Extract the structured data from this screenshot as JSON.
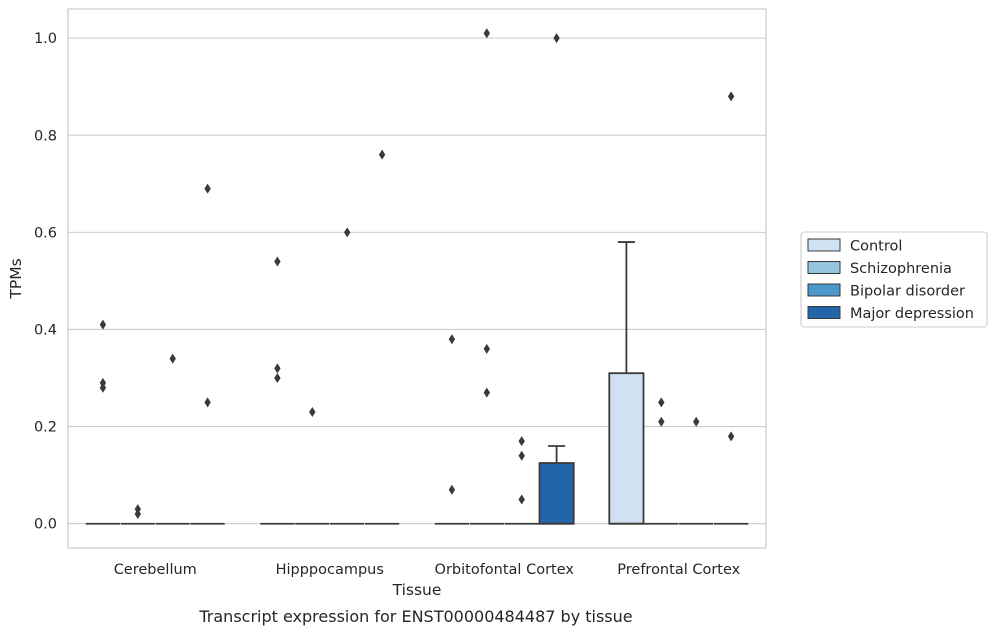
{
  "chart_data": {
    "type": "box",
    "xlabel": "Tissue",
    "ylabel": "TPMs",
    "caption": "Transcript expression for ENST00000484487 by tissue",
    "ylim": [
      -0.05,
      1.06
    ],
    "yticks": [
      0.0,
      0.2,
      0.4,
      0.6,
      0.8,
      1.0
    ],
    "ytick_labels": [
      "0.0",
      "0.2",
      "0.4",
      "0.6",
      "0.8",
      "1.0"
    ],
    "grid": "horizontal",
    "legend_position": "right",
    "categories": [
      "Cerebellum",
      "Hipppocampus",
      "Orbitofontal Cortex",
      "Prefrontal Cortex"
    ],
    "series": [
      {
        "name": "Control",
        "color": "#d0e1f2"
      },
      {
        "name": "Schizophrenia",
        "color": "#94c4df"
      },
      {
        "name": "Bipolar disorder",
        "color": "#4a98c9"
      },
      {
        "name": "Major depression",
        "color": "#2265a8"
      }
    ],
    "boxes": [
      {
        "category": 0,
        "series": 0,
        "q1": 0,
        "median": 0,
        "q3": 0,
        "whisker_low": 0,
        "whisker_high": 0,
        "outliers": [
          0.41,
          0.29,
          0.28
        ]
      },
      {
        "category": 0,
        "series": 1,
        "q1": 0,
        "median": 0,
        "q3": 0,
        "whisker_low": 0,
        "whisker_high": 0,
        "outliers": [
          0.03,
          0.02
        ]
      },
      {
        "category": 0,
        "series": 2,
        "q1": 0,
        "median": 0,
        "q3": 0,
        "whisker_low": 0,
        "whisker_high": 0,
        "outliers": [
          0.34
        ]
      },
      {
        "category": 0,
        "series": 3,
        "q1": 0,
        "median": 0,
        "q3": 0,
        "whisker_low": 0,
        "whisker_high": 0,
        "outliers": [
          0.69,
          0.25
        ]
      },
      {
        "category": 1,
        "series": 0,
        "q1": 0,
        "median": 0,
        "q3": 0,
        "whisker_low": 0,
        "whisker_high": 0,
        "outliers": [
          0.54,
          0.32,
          0.3
        ]
      },
      {
        "category": 1,
        "series": 1,
        "q1": 0,
        "median": 0,
        "q3": 0,
        "whisker_low": 0,
        "whisker_high": 0,
        "outliers": [
          0.23
        ]
      },
      {
        "category": 1,
        "series": 2,
        "q1": 0,
        "median": 0,
        "q3": 0,
        "whisker_low": 0,
        "whisker_high": 0,
        "outliers": [
          0.6
        ]
      },
      {
        "category": 1,
        "series": 3,
        "q1": 0,
        "median": 0,
        "q3": 0,
        "whisker_low": 0,
        "whisker_high": 0,
        "outliers": [
          0.76
        ]
      },
      {
        "category": 2,
        "series": 0,
        "q1": 0,
        "median": 0,
        "q3": 0,
        "whisker_low": 0,
        "whisker_high": 0,
        "outliers": [
          0.38,
          0.07
        ]
      },
      {
        "category": 2,
        "series": 1,
        "q1": 0,
        "median": 0,
        "q3": 0,
        "whisker_low": 0,
        "whisker_high": 0,
        "outliers": [
          1.01,
          0.36,
          0.27
        ]
      },
      {
        "category": 2,
        "series": 2,
        "q1": 0,
        "median": 0,
        "q3": 0,
        "whisker_low": 0,
        "whisker_high": 0,
        "outliers": [
          0.17,
          0.14,
          0.05
        ]
      },
      {
        "category": 2,
        "series": 3,
        "q1": 0,
        "median": 0,
        "q3": 0.125,
        "whisker_low": 0,
        "whisker_high": 0.16,
        "outliers": [
          1.0
        ]
      },
      {
        "category": 3,
        "series": 0,
        "q1": 0,
        "median": 0,
        "q3": 0.31,
        "whisker_low": 0,
        "whisker_high": 0.58,
        "outliers": []
      },
      {
        "category": 3,
        "series": 1,
        "q1": 0,
        "median": 0,
        "q3": 0,
        "whisker_low": 0,
        "whisker_high": 0,
        "outliers": [
          0.25,
          0.21
        ]
      },
      {
        "category": 3,
        "series": 2,
        "q1": 0,
        "median": 0,
        "q3": 0,
        "whisker_low": 0,
        "whisker_high": 0,
        "outliers": [
          0.21
        ]
      },
      {
        "category": 3,
        "series": 3,
        "q1": 0,
        "median": 0,
        "q3": 0,
        "whisker_low": 0,
        "whisker_high": 0,
        "outliers": [
          0.88,
          0.18
        ]
      }
    ]
  }
}
